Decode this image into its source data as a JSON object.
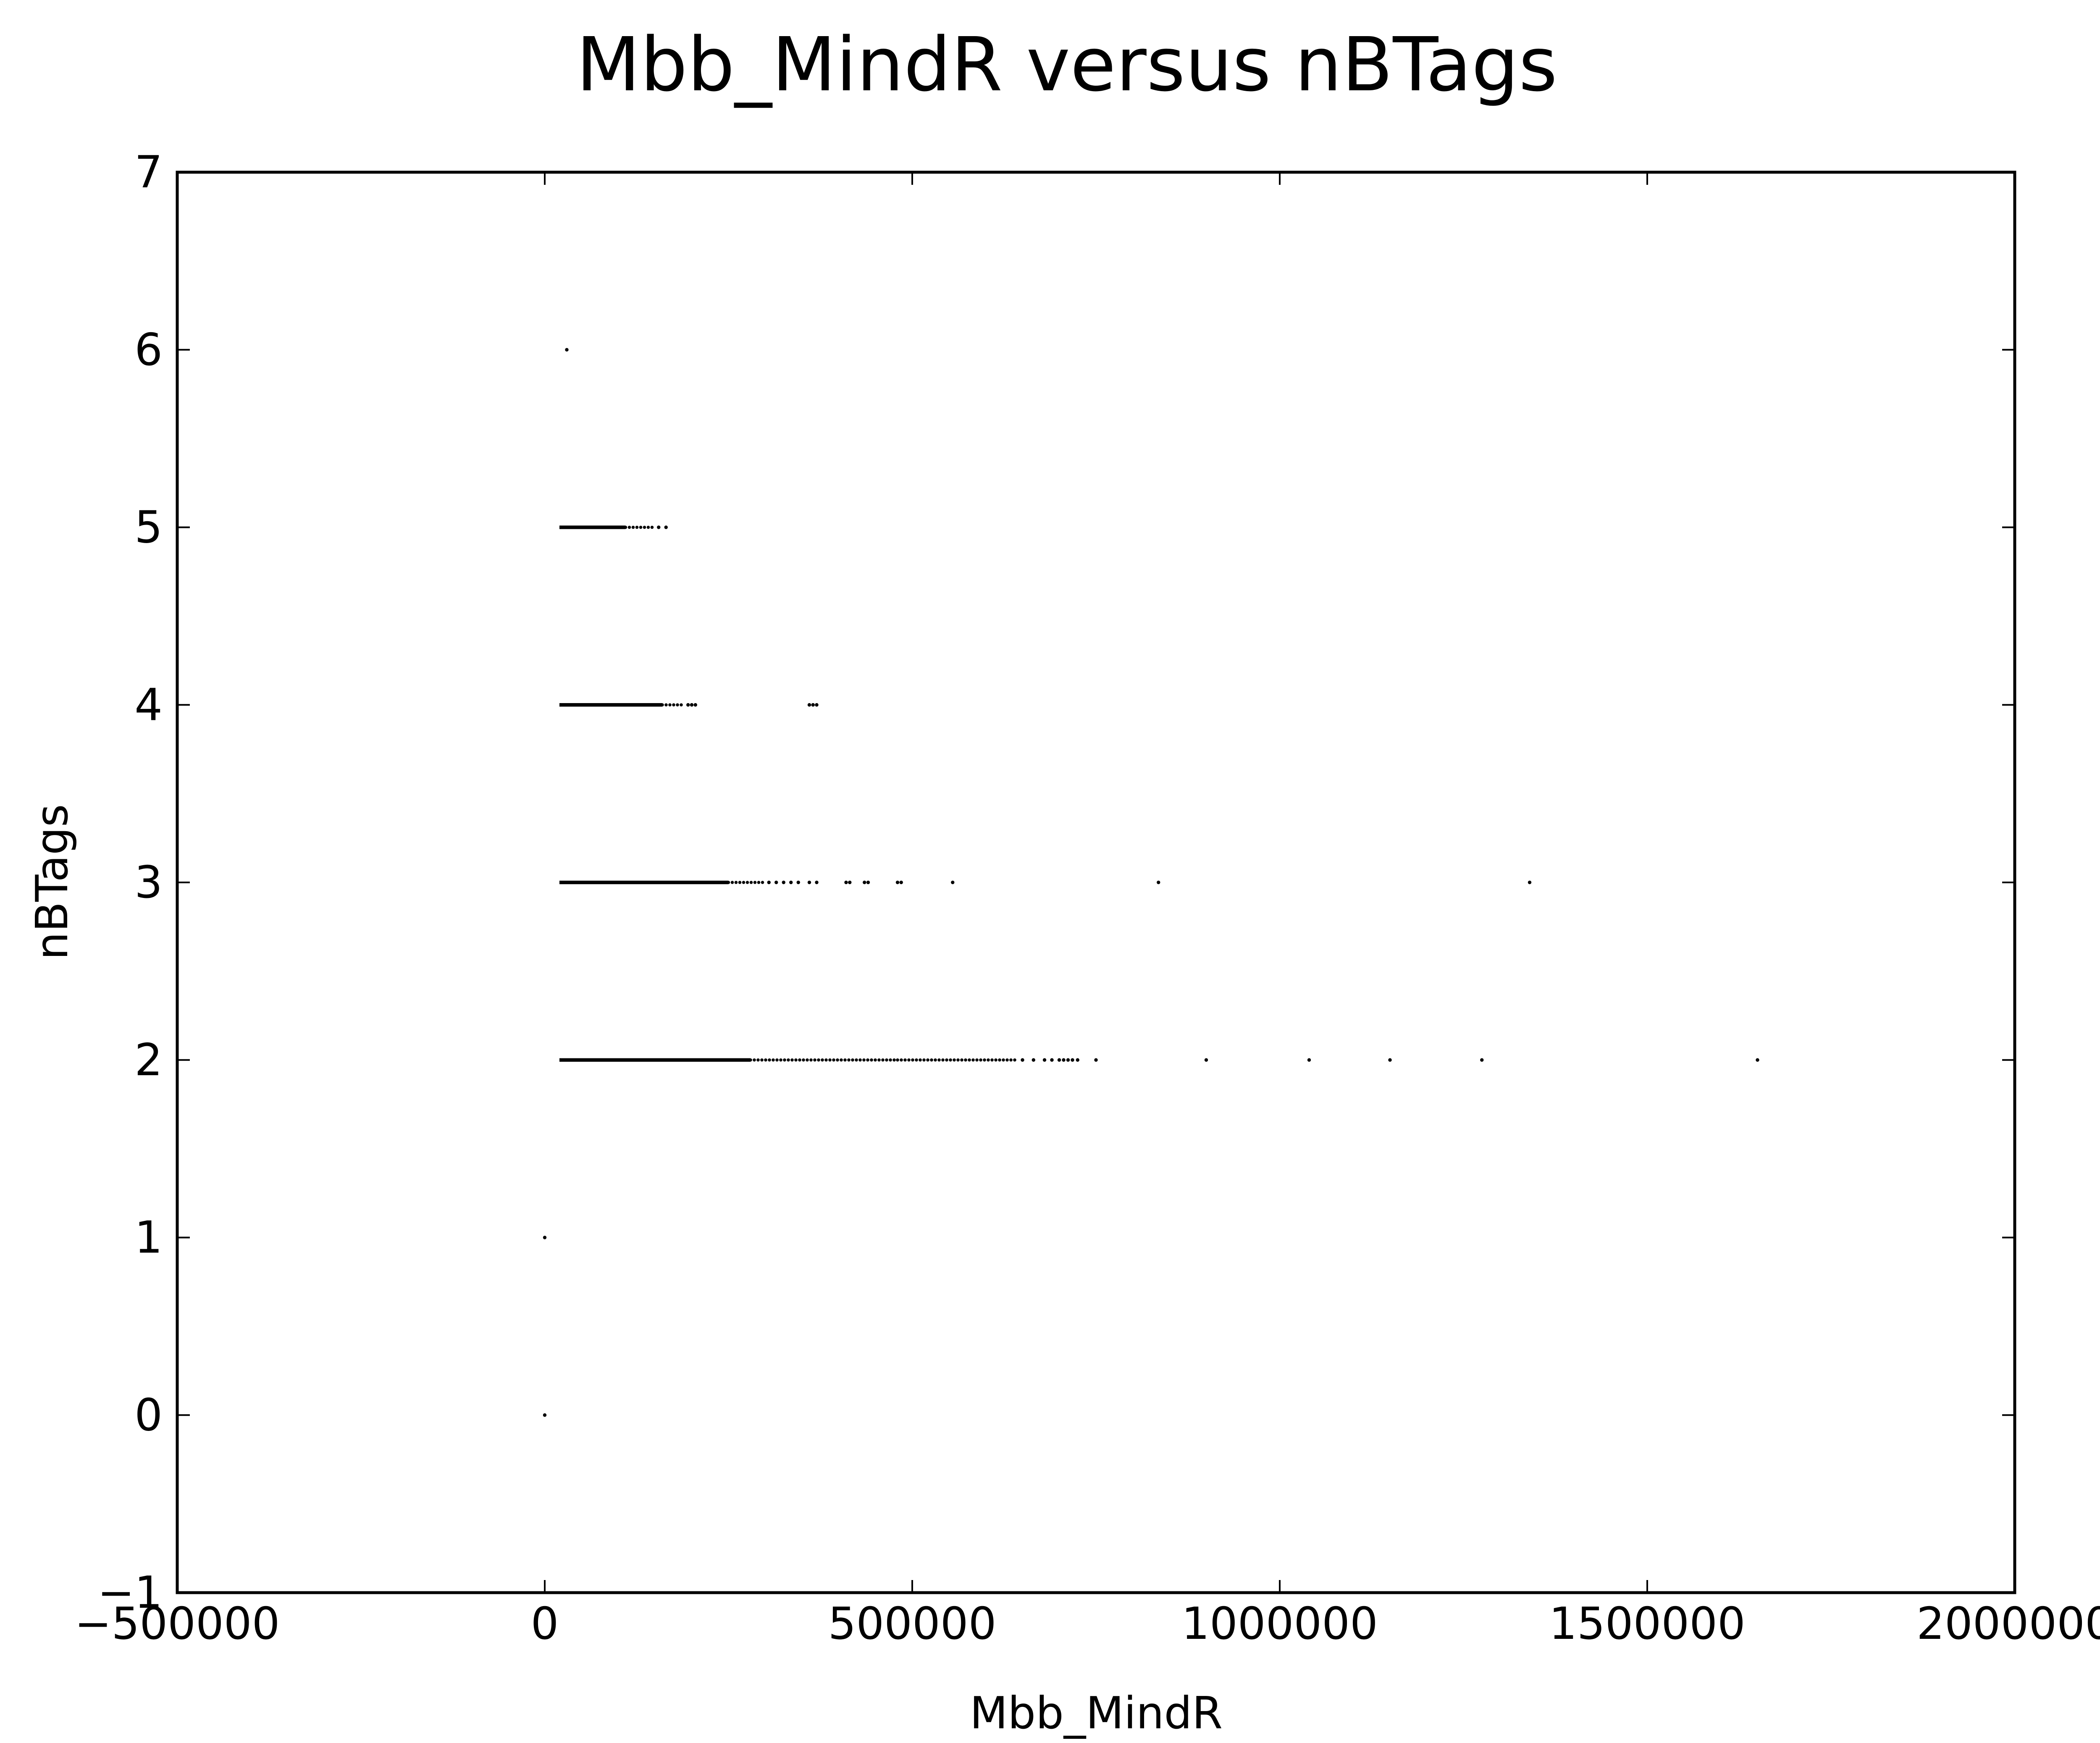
{
  "chart_data": {
    "type": "scatter",
    "title": "Mbb_MindR versus nBTags",
    "xlabel": "Mbb_MindR",
    "ylabel": "nBTags",
    "xlim": [
      -500000,
      2000000
    ],
    "ylim": [
      -1,
      7
    ],
    "xticks": [
      -500000,
      0,
      500000,
      1000000,
      1500000,
      2000000
    ],
    "xtick_labels": [
      "−500000",
      "0",
      "500000",
      "1000000",
      "1500000",
      "2000000"
    ],
    "yticks": [
      -1,
      0,
      1,
      2,
      3,
      4,
      5,
      6,
      7
    ],
    "ytick_labels": [
      "−1",
      "0",
      "1",
      "2",
      "3",
      "4",
      "5",
      "6",
      "7"
    ],
    "grid": false,
    "marker_color": "#000000",
    "series": [
      {
        "points": [
          [
            0,
            0
          ],
          [
            0,
            1
          ],
          [
            30000,
            6
          ]
        ]
      }
    ],
    "dense_rows": [
      {
        "y": 2,
        "dense_ranges": [
          [
            20000,
            280000
          ],
          [
            280000,
            480000
          ],
          [
            480000,
            640000
          ]
        ],
        "x": [
          650000,
          665000,
          680000,
          690000,
          700000,
          706000,
          712000,
          718000,
          725000,
          750000,
          900000,
          1040000,
          1150000,
          1275000,
          1650000
        ]
      },
      {
        "y": 3,
        "dense_ranges": [
          [
            20000,
            250000
          ],
          [
            250000,
            300000
          ]
        ],
        "x": [
          305000,
          315000,
          325000,
          335000,
          345000,
          360000,
          370000,
          410000,
          415000,
          435000,
          440000,
          480000,
          485000,
          555000,
          835000,
          1340000
        ]
      },
      {
        "y": 4,
        "dense_ranges": [
          [
            20000,
            160000
          ],
          [
            160000,
            190000
          ]
        ],
        "x": [
          195000,
          200000,
          205000,
          360000,
          365000,
          370000
        ]
      },
      {
        "y": 5,
        "dense_ranges": [
          [
            20000,
            110000
          ],
          [
            110000,
            150000
          ]
        ],
        "x": [
          155000,
          165000
        ]
      }
    ]
  }
}
